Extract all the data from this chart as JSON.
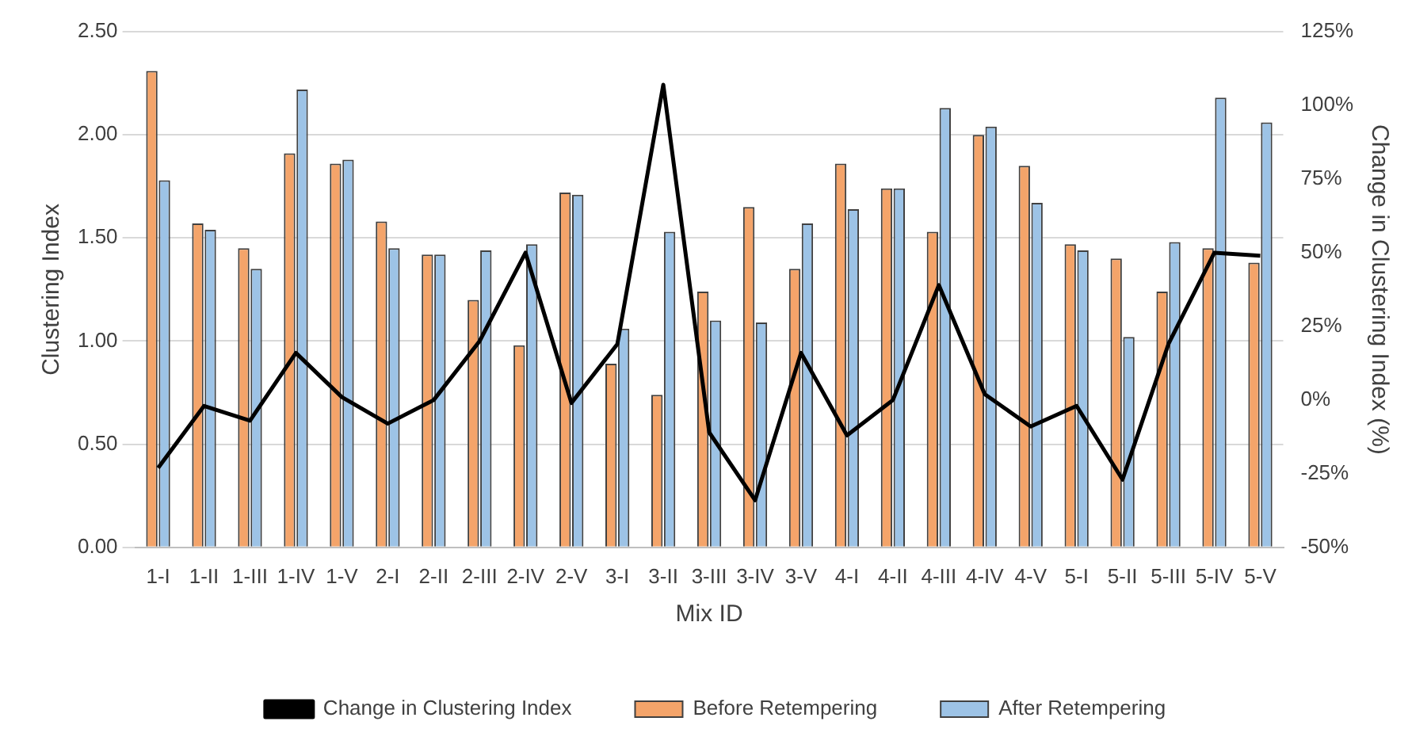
{
  "chart_data": {
    "type": "bar",
    "xlabel": "Mix ID",
    "ylabel": "Clustering Index",
    "y2label": "Change in Clustering Index (%)",
    "categories": [
      "1-I",
      "1-II",
      "1-III",
      "1-IV",
      "1-V",
      "2-I",
      "2-II",
      "2-III",
      "2-IV",
      "2-V",
      "3-I",
      "3-II",
      "3-III",
      "3-IV",
      "3-V",
      "4-I",
      "4-II",
      "4-III",
      "4-IV",
      "4-V",
      "5-I",
      "5-II",
      "5-III",
      "5-IV",
      "5-V"
    ],
    "series": [
      {
        "name": "Before Retempering",
        "color": "#f4a46a",
        "values": [
          2.31,
          1.57,
          1.45,
          1.91,
          1.86,
          1.58,
          1.42,
          1.2,
          0.98,
          1.72,
          0.89,
          0.74,
          1.24,
          1.65,
          1.35,
          1.86,
          1.74,
          1.53,
          2.0,
          1.85,
          1.47,
          1.4,
          1.24,
          1.45,
          1.38
        ]
      },
      {
        "name": "After Retempering",
        "color": "#9dc3e6",
        "values": [
          1.78,
          1.54,
          1.35,
          2.22,
          1.88,
          1.45,
          1.42,
          1.44,
          1.47,
          1.71,
          1.06,
          1.53,
          1.1,
          1.09,
          1.57,
          1.64,
          1.74,
          2.13,
          2.04,
          1.67,
          1.44,
          1.02,
          1.48,
          2.18,
          2.06
        ]
      },
      {
        "name": "Change in Clustering Index",
        "type": "line",
        "axis": "y2",
        "color": "#000000",
        "values": [
          -23,
          -2,
          -7,
          16,
          1,
          -8,
          0,
          20,
          50,
          -1,
          19,
          107,
          -11,
          -34,
          16,
          -12,
          0,
          39,
          2,
          -9,
          -2,
          -27,
          19,
          50,
          49
        ]
      }
    ],
    "ylim": [
      0,
      2.5
    ],
    "yticks": [
      {
        "value": 0,
        "label": "0.00"
      },
      {
        "value": 0.5,
        "label": "0.50"
      },
      {
        "value": 1,
        "label": "1.00"
      },
      {
        "value": 1.5,
        "label": "1.50"
      },
      {
        "value": 2,
        "label": "2.00"
      },
      {
        "value": 2.5,
        "label": "2.50"
      }
    ],
    "y2lim": [
      -50,
      125
    ],
    "y2ticks": [
      {
        "value": -50,
        "label": "-50%"
      },
      {
        "value": -25,
        "label": "-25%"
      },
      {
        "value": 0,
        "label": "0%"
      },
      {
        "value": 25,
        "label": "25%"
      },
      {
        "value": 50,
        "label": "50%"
      },
      {
        "value": 75,
        "label": "75%"
      },
      {
        "value": 100,
        "label": "100%"
      },
      {
        "value": 125,
        "label": "125%"
      }
    ],
    "grid": "y",
    "legend": "bottom",
    "marker": "none",
    "line_style": "solid"
  }
}
